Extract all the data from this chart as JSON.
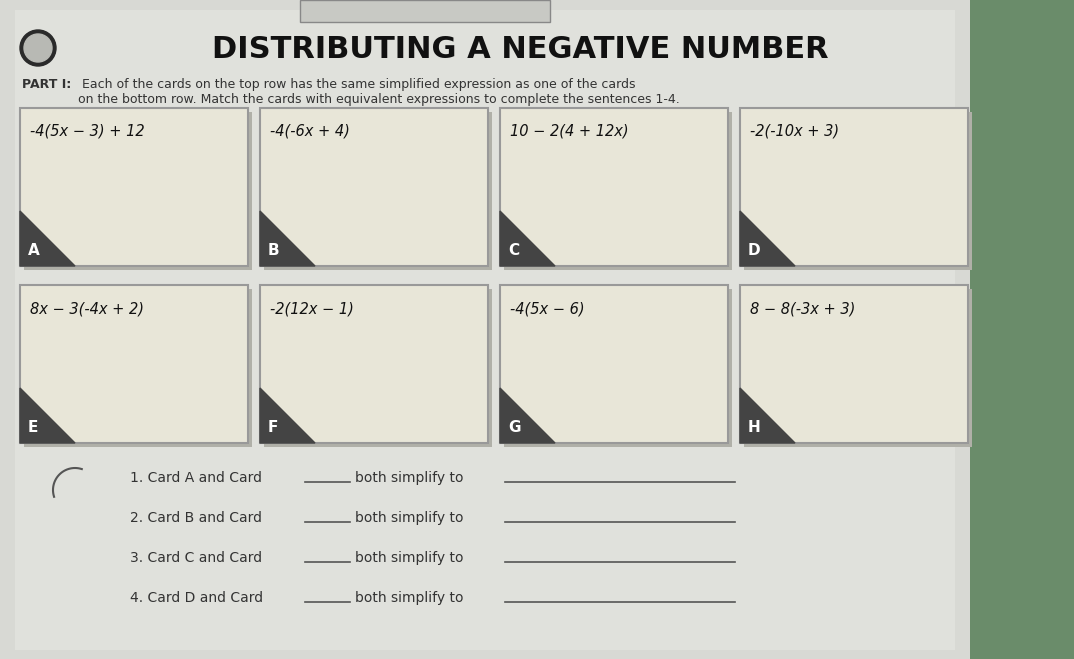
{
  "title": "DISTRIBUTING A NEGATIVE NUMBER",
  "subtitle_bold": "PART I:",
  "subtitle_rest": " Each of the cards on the top row has the same simplified expression as one of the cards\non the bottom row. Match the cards with equivalent expressions to complete the sentences 1-4.",
  "top_cards": [
    {
      "label": "A",
      "expr": "-4(5x − 3) + 12"
    },
    {
      "label": "B",
      "expr": "-4(-6x + 4)"
    },
    {
      "label": "C",
      "expr": "10 − 2(4 + 12x)"
    },
    {
      "label": "D",
      "expr": "-2(-10x + 3)"
    }
  ],
  "bottom_cards": [
    {
      "label": "E",
      "expr": "8x − 3(-4x + 2)"
    },
    {
      "label": "F",
      "expr": "-2(12x − 1)"
    },
    {
      "label": "G",
      "expr": "-4(5x − 6)"
    },
    {
      "label": "H",
      "expr": "8 − 8(-3x + 3)"
    }
  ],
  "sentence_parts": [
    [
      "1. Card A and Card ",
      "_____",
      " both simplify to ",
      "______________________"
    ],
    [
      "2. Card B and Card ",
      "_____",
      " both simplify to ",
      "______________________"
    ],
    [
      "3. Card C and Card ",
      "_____",
      " both simplify to ",
      "______________________"
    ],
    [
      "4. Card D and Card ",
      "_____",
      " both simplify to ",
      "______________________"
    ]
  ],
  "paper_color": "#dcddd8",
  "card_bg": "#e8e6d8",
  "card_border": "#999999",
  "label_bg": "#444444",
  "label_color": "#ffffff",
  "title_color": "#111111",
  "text_color": "#333333",
  "right_bg": "#6a8c6a",
  "shadow_color": "#bbbbaa"
}
